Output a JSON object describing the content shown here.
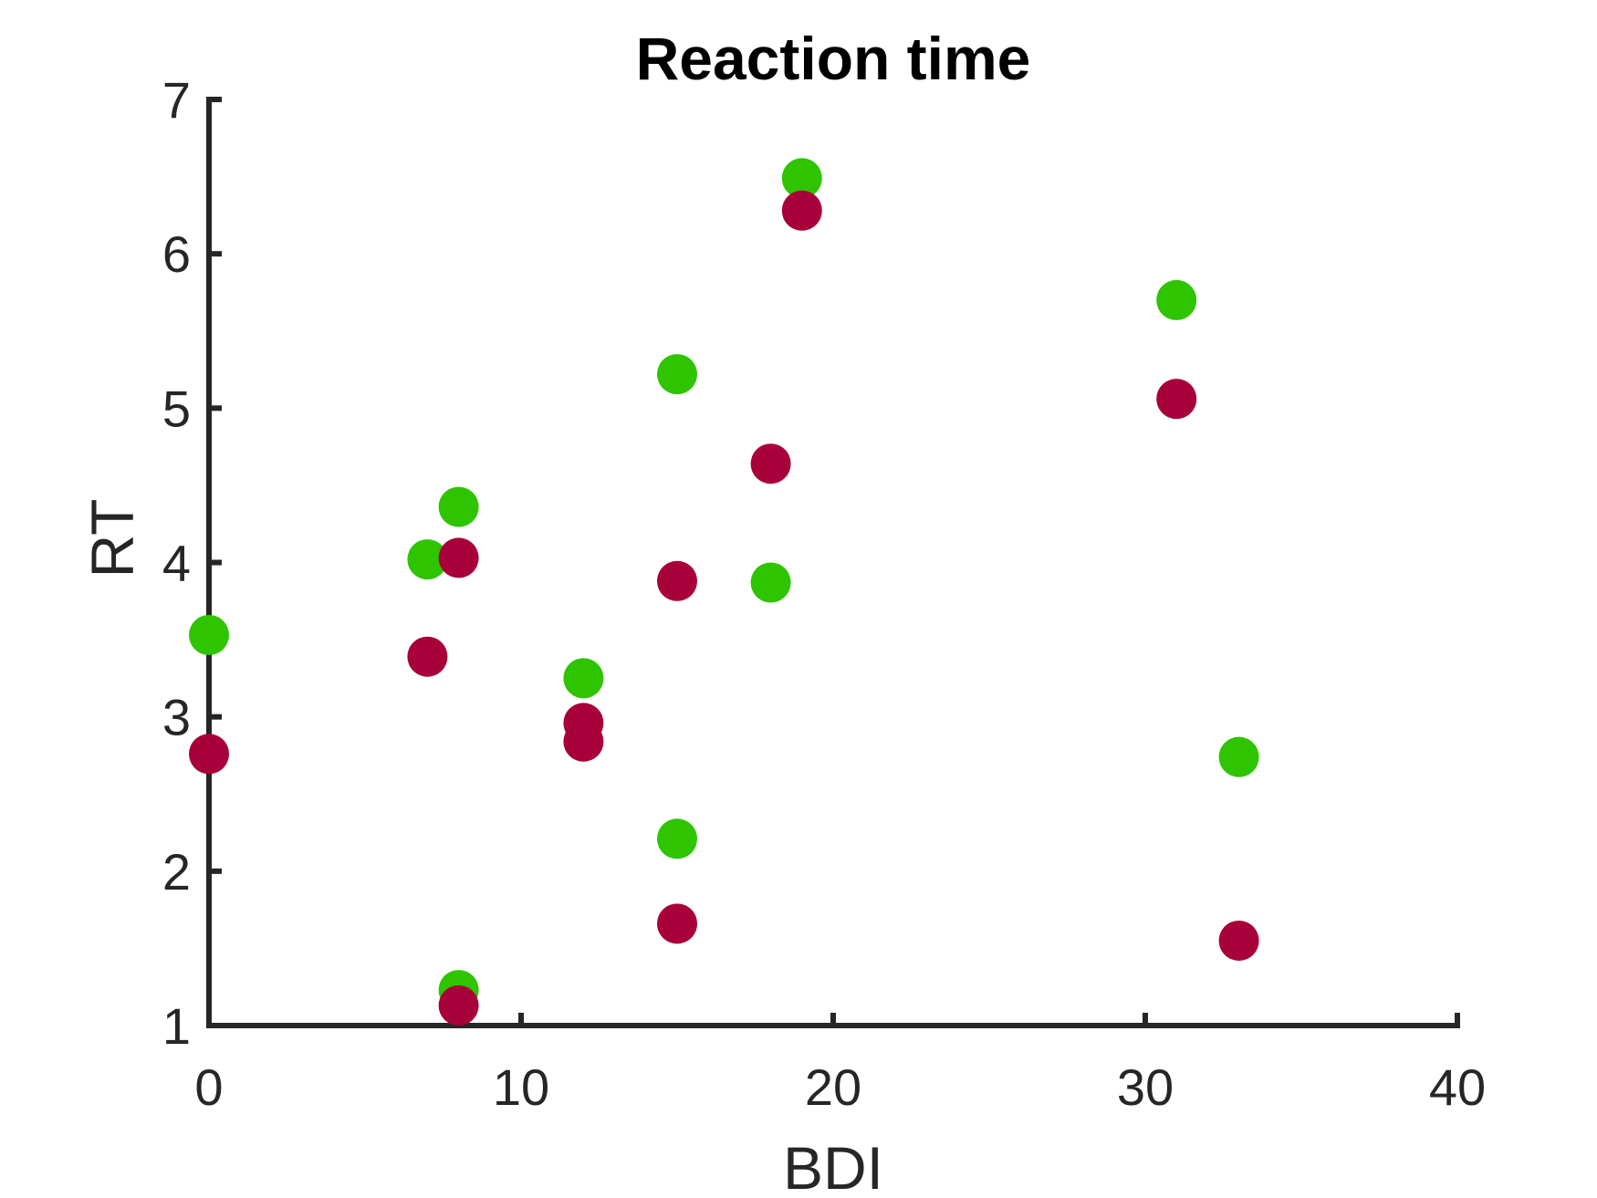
{
  "chart_data": {
    "type": "scatter",
    "title": "Reaction time",
    "xlabel": "BDI",
    "ylabel": "RT",
    "xlim": [
      0,
      40
    ],
    "ylim": [
      1,
      7
    ],
    "xticks": [
      "0",
      "10",
      "20",
      "30",
      "40"
    ],
    "yticks": [
      "1",
      "2",
      "3",
      "4",
      "5",
      "6",
      "7"
    ],
    "grid": false,
    "legend": "none",
    "series": [
      {
        "color": "#2ec400",
        "points": [
          {
            "x": 0,
            "y": 3.53
          },
          {
            "x": 7,
            "y": 4.02
          },
          {
            "x": 8,
            "y": 4.36
          },
          {
            "x": 8,
            "y": 1.23
          },
          {
            "x": 12,
            "y": 3.25
          },
          {
            "x": 15,
            "y": 5.22
          },
          {
            "x": 15,
            "y": 2.21
          },
          {
            "x": 18,
            "y": 3.87
          },
          {
            "x": 19,
            "y": 6.49
          },
          {
            "x": 31,
            "y": 5.7
          },
          {
            "x": 33,
            "y": 2.74
          }
        ]
      },
      {
        "color": "#a8003a",
        "points": [
          {
            "x": 0,
            "y": 2.76
          },
          {
            "x": 7,
            "y": 3.39
          },
          {
            "x": 8,
            "y": 4.03
          },
          {
            "x": 8,
            "y": 1.13
          },
          {
            "x": 12,
            "y": 2.96
          },
          {
            "x": 12,
            "y": 2.84
          },
          {
            "x": 15,
            "y": 3.88
          },
          {
            "x": 15,
            "y": 1.66
          },
          {
            "x": 18,
            "y": 4.64
          },
          {
            "x": 19,
            "y": 6.28
          },
          {
            "x": 31,
            "y": 5.06
          },
          {
            "x": 33,
            "y": 1.55
          }
        ]
      }
    ]
  }
}
